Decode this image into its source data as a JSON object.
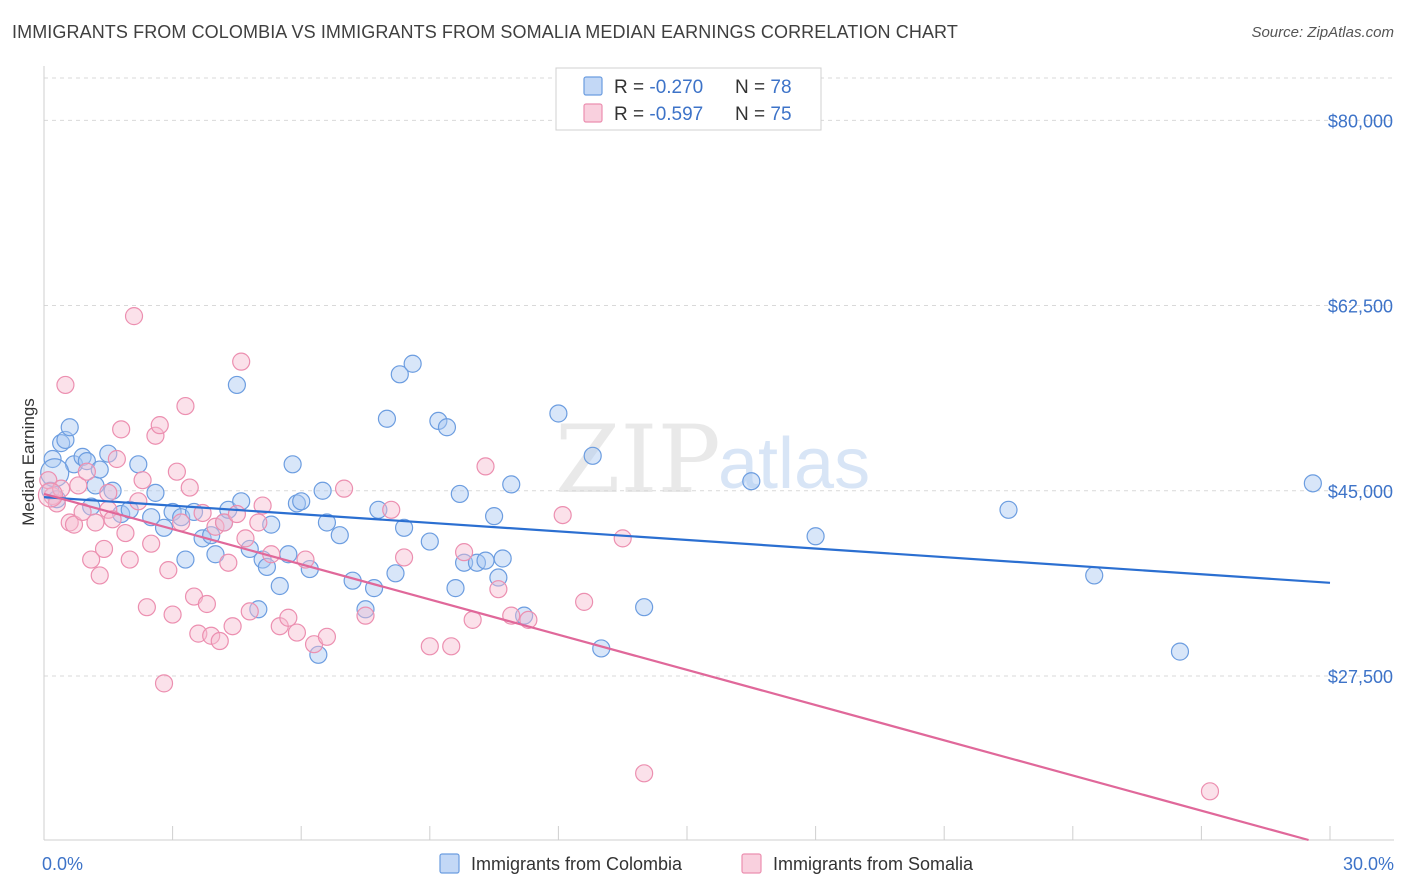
{
  "title": "IMMIGRANTS FROM COLOMBIA VS IMMIGRANTS FROM SOMALIA MEDIAN EARNINGS CORRELATION CHART",
  "source": "Source: ZipAtlas.com",
  "watermark": {
    "zip": "ZIP",
    "atlas": "atlas"
  },
  "legend_top": [
    {
      "r_label": "R = ",
      "r_value": "-0.270",
      "n_label": "N = ",
      "n_value": "78"
    },
    {
      "r_label": "R = ",
      "r_value": "-0.597",
      "n_label": "N = ",
      "n_value": "75"
    }
  ],
  "colors": {
    "colombia_fill": "#a9c8f2",
    "colombia_stroke": "#6c9de0",
    "colombia_line": "#2b6fd1",
    "somalia_fill": "#f7bcd0",
    "somalia_stroke": "#ec8fb0",
    "somalia_line": "#e0689a",
    "grid": "#d9d9d9",
    "tick_text": "#3d73c8"
  },
  "chart_data": {
    "type": "scatter",
    "title": "IMMIGRANTS FROM COLOMBIA VS IMMIGRANTS FROM SOMALIA MEDIAN EARNINGS CORRELATION CHART",
    "xlabel": "",
    "ylabel": "Median Earnings",
    "xlim": [
      0,
      30
    ],
    "ylim": [
      12000,
      84000
    ],
    "x_tick_labels": [
      "0.0%",
      "30.0%"
    ],
    "y_ticks": [
      27500,
      45000,
      62500,
      80000
    ],
    "y_tick_labels": [
      "$27,500",
      "$45,000",
      "$62,500",
      "$80,000"
    ],
    "grid": true,
    "legend_position": "top-center",
    "series": [
      {
        "name": "Immigrants from Colombia",
        "color": "#6c9de0",
        "trend": {
          "x": [
            0,
            30
          ],
          "y": [
            44400,
            36300
          ]
        },
        "points": [
          [
            0.15,
            45000
          ],
          [
            0.2,
            48000
          ],
          [
            0.3,
            44200
          ],
          [
            0.4,
            49500
          ],
          [
            0.5,
            49800
          ],
          [
            0.6,
            51000
          ],
          [
            0.7,
            47500
          ],
          [
            0.9,
            48200
          ],
          [
            1.0,
            47800
          ],
          [
            1.1,
            43500
          ],
          [
            1.2,
            45500
          ],
          [
            1.3,
            47000
          ],
          [
            1.5,
            48500
          ],
          [
            1.6,
            45000
          ],
          [
            1.8,
            42800
          ],
          [
            2.0,
            43200
          ],
          [
            2.2,
            47500
          ],
          [
            2.5,
            42500
          ],
          [
            2.6,
            44800
          ],
          [
            2.8,
            41500
          ],
          [
            3.0,
            43000
          ],
          [
            3.2,
            42500
          ],
          [
            3.3,
            38500
          ],
          [
            3.5,
            43000
          ],
          [
            3.7,
            40500
          ],
          [
            3.9,
            40800
          ],
          [
            4.0,
            39000
          ],
          [
            4.2,
            42000
          ],
          [
            4.3,
            43200
          ],
          [
            4.5,
            55000
          ],
          [
            4.6,
            44000
          ],
          [
            4.8,
            39500
          ],
          [
            5.0,
            33800
          ],
          [
            5.1,
            38500
          ],
          [
            5.2,
            37800
          ],
          [
            5.3,
            41800
          ],
          [
            5.5,
            36000
          ],
          [
            5.7,
            39000
          ],
          [
            5.8,
            47500
          ],
          [
            5.9,
            43800
          ],
          [
            6.0,
            44000
          ],
          [
            6.2,
            37600
          ],
          [
            6.4,
            29500
          ],
          [
            6.5,
            45000
          ],
          [
            6.6,
            42000
          ],
          [
            6.9,
            40800
          ],
          [
            7.2,
            36500
          ],
          [
            7.5,
            33800
          ],
          [
            7.7,
            35800
          ],
          [
            7.8,
            43200
          ],
          [
            8.0,
            51800
          ],
          [
            8.2,
            37200
          ],
          [
            8.3,
            56000
          ],
          [
            8.4,
            41500
          ],
          [
            8.6,
            57000
          ],
          [
            9.0,
            40200
          ],
          [
            9.2,
            51600
          ],
          [
            9.4,
            51000
          ],
          [
            9.6,
            35800
          ],
          [
            9.7,
            44700
          ],
          [
            9.8,
            38200
          ],
          [
            10.1,
            38200
          ],
          [
            10.3,
            38400
          ],
          [
            10.5,
            42600
          ],
          [
            10.6,
            36800
          ],
          [
            10.7,
            38600
          ],
          [
            10.9,
            45600
          ],
          [
            11.2,
            33200
          ],
          [
            12.0,
            52300
          ],
          [
            12.8,
            48300
          ],
          [
            13.0,
            30100
          ],
          [
            14.0,
            34000
          ],
          [
            16.5,
            45900
          ],
          [
            18.0,
            40700
          ],
          [
            22.5,
            43200
          ],
          [
            24.5,
            37000
          ],
          [
            26.5,
            29800
          ],
          [
            29.6,
            45700
          ]
        ]
      },
      {
        "name": "Immigrants from Somalia",
        "color": "#ec8fb0",
        "trend": {
          "x": [
            0,
            29.5
          ],
          "y": [
            44700,
            12000
          ]
        },
        "points": [
          [
            0.1,
            46000
          ],
          [
            0.2,
            44500
          ],
          [
            0.3,
            43800
          ],
          [
            0.4,
            45200
          ],
          [
            0.5,
            55000
          ],
          [
            0.6,
            42000
          ],
          [
            0.7,
            41800
          ],
          [
            0.8,
            45500
          ],
          [
            0.9,
            43000
          ],
          [
            1.0,
            46800
          ],
          [
            1.1,
            38500
          ],
          [
            1.2,
            42000
          ],
          [
            1.3,
            37000
          ],
          [
            1.4,
            39500
          ],
          [
            1.5,
            43200
          ],
          [
            1.6,
            42300
          ],
          [
            1.7,
            48000
          ],
          [
            1.8,
            50800
          ],
          [
            1.9,
            41000
          ],
          [
            2.0,
            38500
          ],
          [
            2.1,
            61500
          ],
          [
            2.2,
            44000
          ],
          [
            2.3,
            46000
          ],
          [
            2.4,
            34000
          ],
          [
            2.5,
            40000
          ],
          [
            2.6,
            50200
          ],
          [
            2.7,
            51200
          ],
          [
            2.8,
            26800
          ],
          [
            2.9,
            37500
          ],
          [
            3.0,
            33300
          ],
          [
            3.1,
            46800
          ],
          [
            3.2,
            42000
          ],
          [
            3.3,
            53000
          ],
          [
            3.4,
            45300
          ],
          [
            3.5,
            35000
          ],
          [
            3.6,
            31500
          ],
          [
            3.7,
            42900
          ],
          [
            3.8,
            34300
          ],
          [
            3.9,
            31300
          ],
          [
            4.0,
            41600
          ],
          [
            4.1,
            30800
          ],
          [
            4.2,
            42000
          ],
          [
            4.3,
            38200
          ],
          [
            4.4,
            32200
          ],
          [
            4.5,
            42800
          ],
          [
            4.6,
            57200
          ],
          [
            4.7,
            40500
          ],
          [
            4.8,
            33600
          ],
          [
            5.0,
            42000
          ],
          [
            5.1,
            43600
          ],
          [
            5.3,
            39000
          ],
          [
            5.5,
            32200
          ],
          [
            5.7,
            33000
          ],
          [
            5.9,
            31600
          ],
          [
            6.1,
            38500
          ],
          [
            6.3,
            30500
          ],
          [
            6.6,
            31200
          ],
          [
            7.0,
            45200
          ],
          [
            7.5,
            33200
          ],
          [
            8.1,
            43200
          ],
          [
            8.4,
            38700
          ],
          [
            9.0,
            30300
          ],
          [
            9.5,
            30300
          ],
          [
            9.8,
            39200
          ],
          [
            10.0,
            32800
          ],
          [
            10.3,
            47300
          ],
          [
            10.6,
            35700
          ],
          [
            10.9,
            33200
          ],
          [
            11.3,
            32800
          ],
          [
            12.1,
            42700
          ],
          [
            12.6,
            34500
          ],
          [
            13.5,
            40500
          ],
          [
            14.0,
            18300
          ],
          [
            27.2,
            16600
          ],
          [
            1.5,
            44800
          ]
        ]
      }
    ]
  },
  "bottom_legend": [
    {
      "label": "Immigrants from Colombia"
    },
    {
      "label": "Immigrants from Somalia"
    }
  ]
}
